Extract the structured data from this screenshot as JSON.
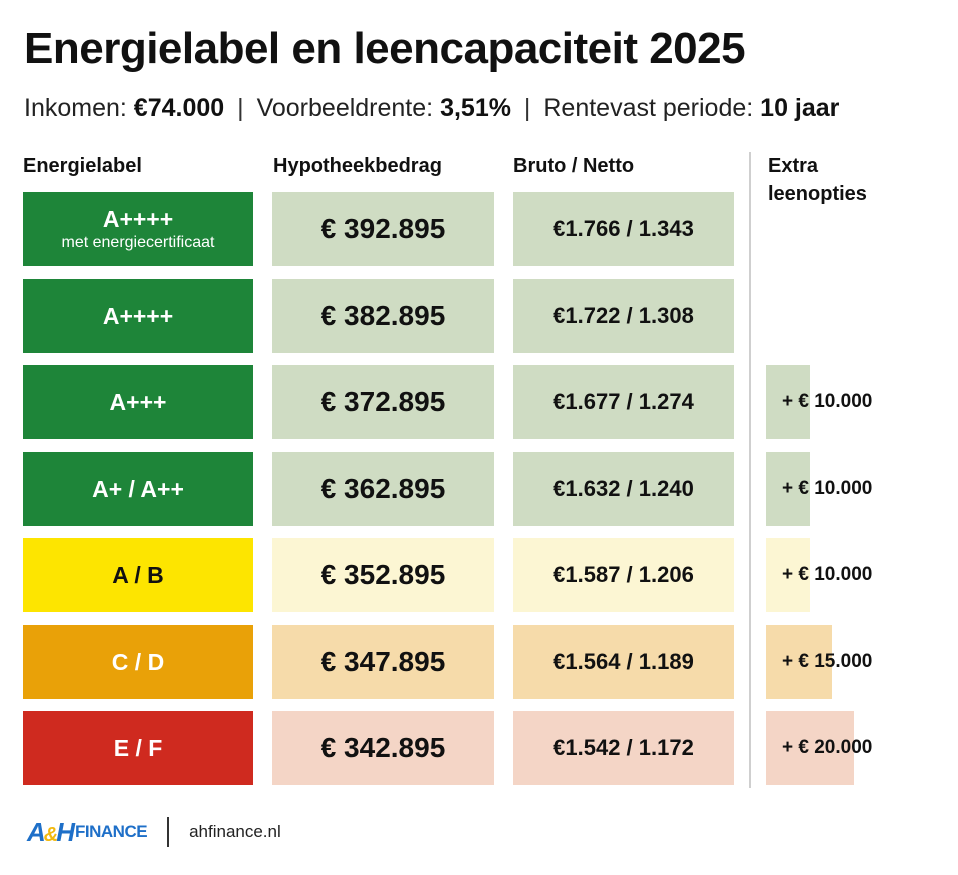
{
  "header": {
    "title": "Energielabel en leencapaciteit 2025",
    "income_label": "Inkomen:",
    "income_value": "€74.000",
    "rate_label": "Voorbeeldrente:",
    "rate_value": "3,51%",
    "period_label": "Rentevast periode:",
    "period_value": "10 jaar",
    "separator": "|"
  },
  "columns": {
    "label": "Energielabel",
    "amount": "Hypotheekbedrag",
    "bruto_netto": "Bruto / Netto",
    "extra": "Extra leenopties"
  },
  "chart_data": {
    "type": "table",
    "title": "Energielabel en leencapaciteit 2025",
    "rows": [
      {
        "label": "A++++",
        "sublabel": "met energiecertificaat",
        "amount": "€ 392.895",
        "bruto_netto": "€1.766 / 1.343",
        "extra": "",
        "extra_value": 0,
        "label_color": "#1e8539",
        "label_text_color": "#ffffff",
        "tint": "#cfdcc3"
      },
      {
        "label": "A++++",
        "sublabel": "",
        "amount": "€ 382.895",
        "bruto_netto": "€1.722 / 1.308",
        "extra": "",
        "extra_value": 0,
        "label_color": "#1e8539",
        "label_text_color": "#ffffff",
        "tint": "#cfdcc3"
      },
      {
        "label": "A+++",
        "sublabel": "",
        "amount": "€ 372.895",
        "bruto_netto": "€1.677 / 1.274",
        "extra": "+ € 10.000",
        "extra_value": 10000,
        "label_color": "#1e8539",
        "label_text_color": "#ffffff",
        "tint": "#cfdcc3"
      },
      {
        "label": "A+ / A++",
        "sublabel": "",
        "amount": "€ 362.895",
        "bruto_netto": "€1.632 / 1.240",
        "extra": "+ € 10.000",
        "extra_value": 10000,
        "label_color": "#1e8539",
        "label_text_color": "#ffffff",
        "tint": "#cfdcc3"
      },
      {
        "label": "A / B",
        "sublabel": "",
        "amount": "€ 352.895",
        "bruto_netto": "€1.587 / 1.206",
        "extra": "+ € 10.000",
        "extra_value": 10000,
        "label_color": "#fde500",
        "label_text_color": "#111111",
        "tint": "#fcf6d3"
      },
      {
        "label": "C / D",
        "sublabel": "",
        "amount": "€ 347.895",
        "bruto_netto": "€1.564 / 1.189",
        "extra": "+ € 15.000",
        "extra_value": 15000,
        "label_color": "#e9a108",
        "label_text_color": "#ffffff",
        "tint": "#f6dbaa"
      },
      {
        "label": "E / F",
        "sublabel": "",
        "amount": "€ 342.895",
        "bruto_netto": "€1.542 / 1.172",
        "extra": "+ € 20.000",
        "extra_value": 20000,
        "label_color": "#cf2a1f",
        "label_text_color": "#ffffff",
        "tint": "#f4d5c6"
      }
    ]
  },
  "footer": {
    "logo_mark_a": "A",
    "logo_mark_amp": "&",
    "logo_mark_h": "H",
    "logo_text": "FINANCE",
    "url": "ahfinance.nl"
  }
}
